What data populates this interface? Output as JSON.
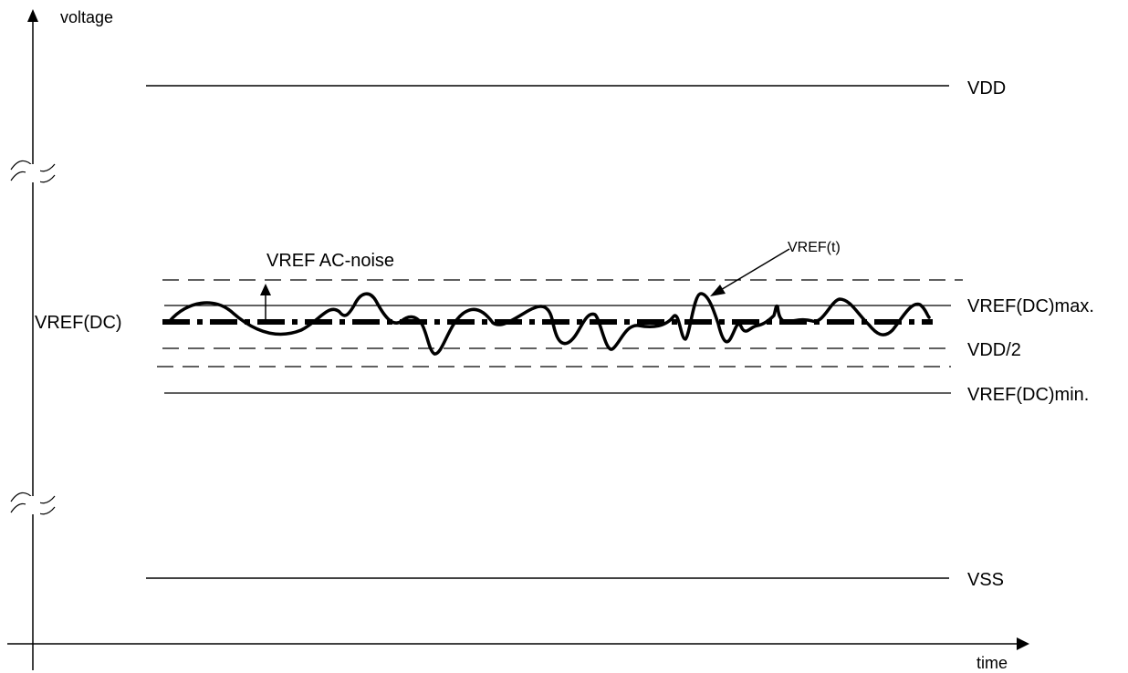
{
  "axes": {
    "y_label": "voltage",
    "x_label": "time"
  },
  "levels": {
    "vdd": "VDD",
    "vref_dc_max": "VREF(DC)max.",
    "vdd_half": "VDD/2",
    "vref_dc_min": "VREF(DC)min.",
    "vss": "VSS",
    "vref_dc": "VREF(DC)"
  },
  "annotations": {
    "ac_noise": "VREF AC-noise",
    "vref_t": "VREF(t)"
  }
}
